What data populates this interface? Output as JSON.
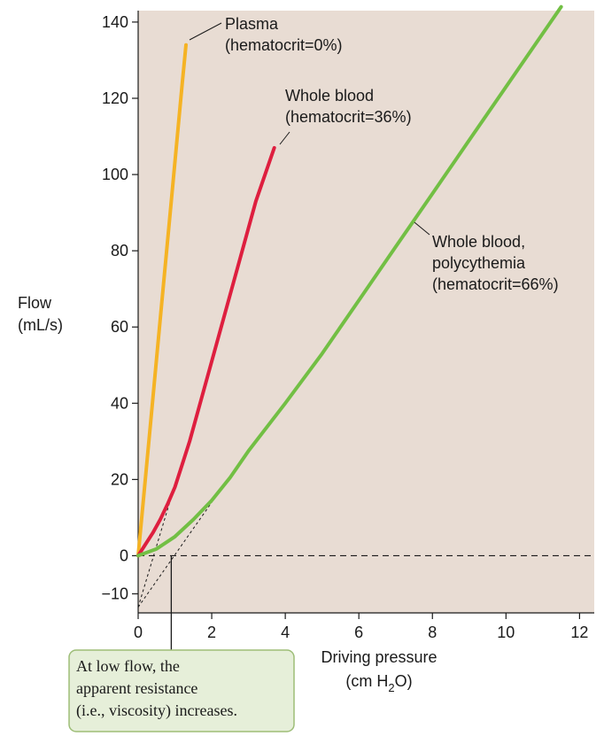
{
  "chart_data": {
    "type": "line",
    "title": "",
    "xlabel": {
      "line1": "Driving pressure",
      "line2_prefix": "(cm H",
      "line2_sub": "2",
      "line2_suffix": "O)"
    },
    "ylabel": {
      "line1": "Flow",
      "line2": "(mL/s)"
    },
    "xlim": [
      0,
      12.4
    ],
    "ylim": [
      -15,
      143
    ],
    "x_ticks": [
      {
        "value": 0,
        "label": "0"
      },
      {
        "value": 2,
        "label": "2"
      },
      {
        "value": 4,
        "label": "4"
      },
      {
        "value": 6,
        "label": "6"
      },
      {
        "value": 8,
        "label": "8"
      },
      {
        "value": 10,
        "label": "10"
      },
      {
        "value": 12,
        "label": "12"
      }
    ],
    "y_ticks": [
      {
        "value": -10,
        "label": "−10"
      },
      {
        "value": 0,
        "label": "0"
      },
      {
        "value": 20,
        "label": "20"
      },
      {
        "value": 40,
        "label": "40"
      },
      {
        "value": 60,
        "label": "60"
      },
      {
        "value": 80,
        "label": "80"
      },
      {
        "value": 100,
        "label": "100"
      },
      {
        "value": 120,
        "label": "120"
      },
      {
        "value": 140,
        "label": "140"
      }
    ],
    "grid": false,
    "series": [
      {
        "name": "Plasma (hematocrit=0%)",
        "label_lines": [
          "Plasma",
          "(hematocrit=0%)"
        ],
        "color": "#f5b324",
        "x": [
          0,
          0.3,
          0.6,
          0.9,
          1.2,
          1.3
        ],
        "y": [
          0,
          31,
          62,
          93,
          124,
          134
        ]
      },
      {
        "name": "Whole blood (hematocrit=36%)",
        "label_lines": [
          "Whole blood",
          "(hematocrit=36%)"
        ],
        "color": "#de1f3f",
        "x": [
          0,
          0.2,
          0.4,
          0.6,
          0.8,
          1.0,
          1.2,
          1.4,
          2.0,
          2.6,
          3.2,
          3.7
        ],
        "y": [
          0,
          3,
          6,
          9.5,
          13.5,
          18,
          24,
          30,
          51,
          72,
          93,
          107
        ]
      },
      {
        "name": "Whole blood, polycythemia (hematocrit=66%)",
        "label_lines": [
          "Whole blood,",
          "polycythemia",
          "(hematocrit=66%)"
        ],
        "color": "#72bf44",
        "x": [
          0,
          0.5,
          1.0,
          1.5,
          2.0,
          2.5,
          3.0,
          4.0,
          5.0,
          6.0,
          7.0,
          8.0,
          9.0,
          10.0,
          11.0,
          11.5
        ],
        "y": [
          0,
          1.8,
          5,
          9.5,
          14.5,
          20.5,
          27.5,
          40,
          53,
          67,
          81,
          95,
          109,
          123,
          137,
          144
        ]
      }
    ],
    "reference_lines": [
      {
        "type": "horizontal",
        "y": 0,
        "style": "dashed"
      }
    ],
    "tangent_lines": [
      {
        "from": [
          0,
          -13.5
        ],
        "to": [
          1.2,
          25
        ]
      },
      {
        "from": [
          0,
          -13.5
        ],
        "to": [
          2.0,
          14
        ]
      }
    ],
    "annotation": {
      "lines": [
        "At low flow, the",
        "apparent resistance",
        "(i.e., viscosity) increases."
      ],
      "pointer_x": 0.9,
      "pointer_y": 0,
      "fill": "#e6efd9",
      "border": "#9dbd77"
    },
    "plot_background": "#e8dcd3"
  }
}
